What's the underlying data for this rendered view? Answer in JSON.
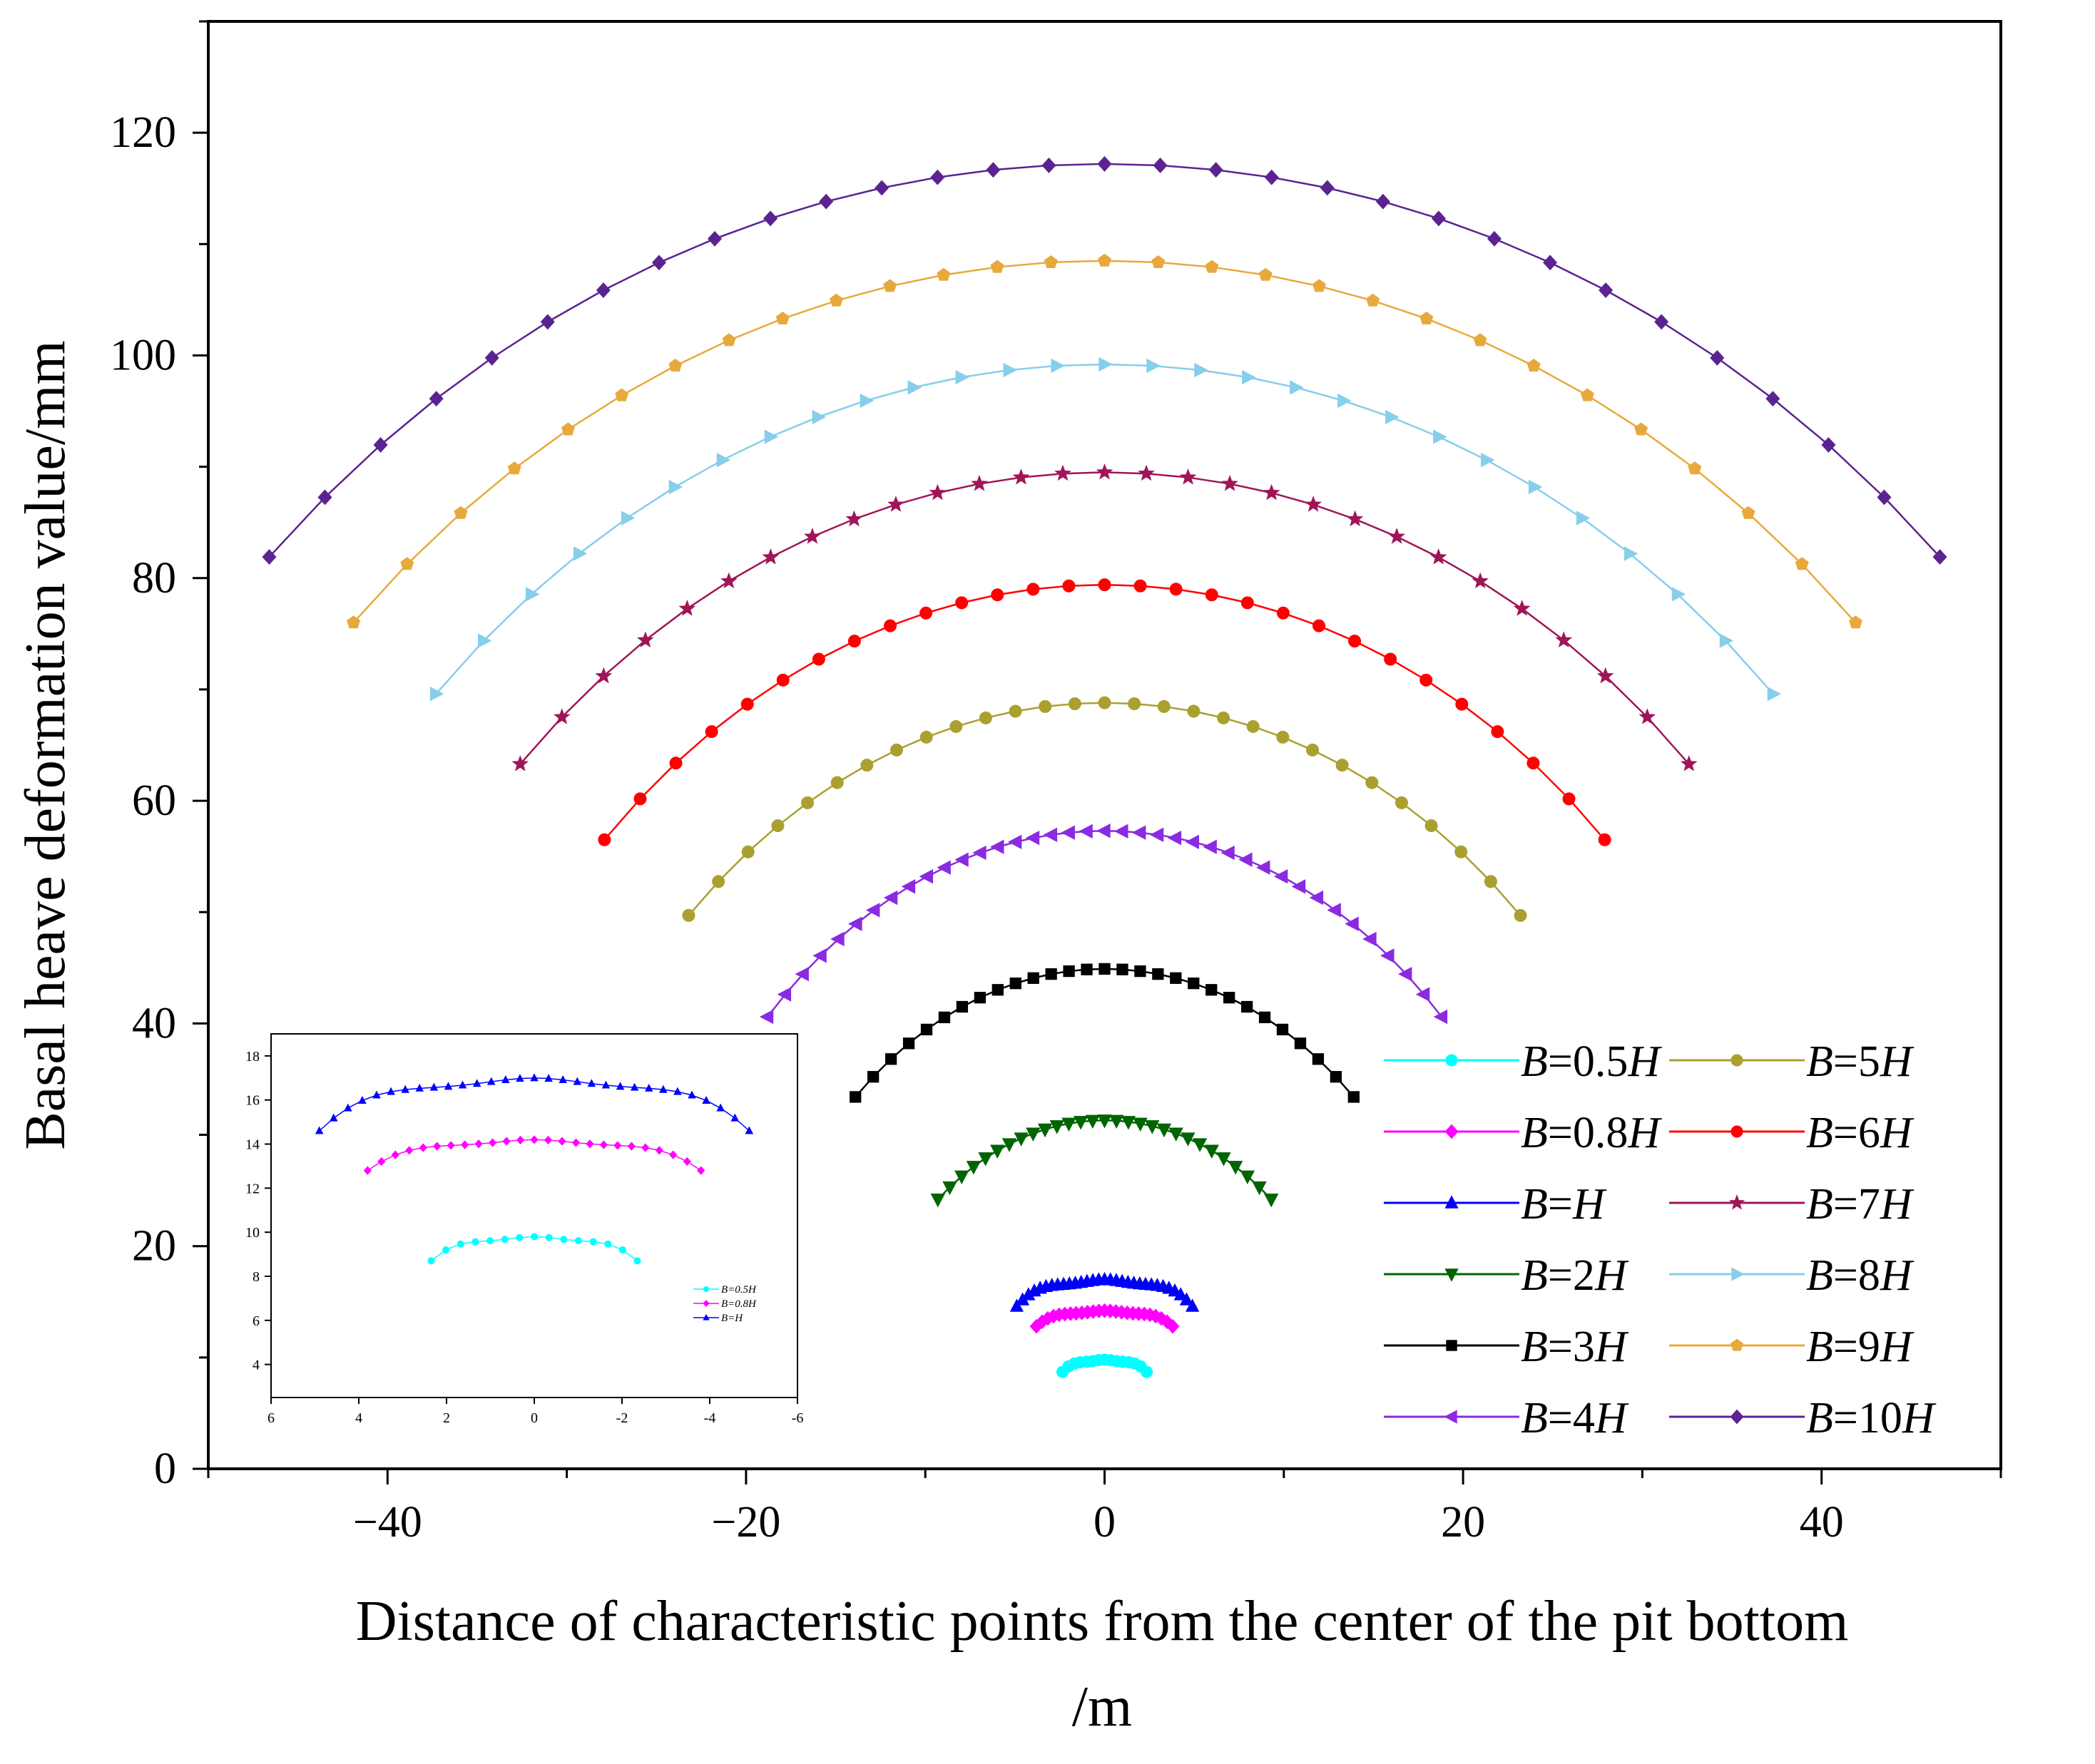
{
  "chart_data": {
    "type": "line",
    "title": "",
    "xlabel_line1": "Distance of  characteristic points from the center of the pit bottom",
    "xlabel_line2": "/m",
    "ylabel": "Basal heave deformation value/mm",
    "xlim": [
      -50,
      50
    ],
    "ylim": [
      0,
      130
    ],
    "xticks": [
      -40,
      -20,
      0,
      20,
      40
    ],
    "xtick_labels": [
      "−40",
      "−20",
      "0",
      "20",
      "40"
    ],
    "yticks": [
      0,
      20,
      40,
      60,
      80,
      100,
      120
    ],
    "ytick_labels": [
      "0",
      "20",
      "40",
      "60",
      "80",
      "100",
      "120"
    ],
    "legend_position": "bottom-right",
    "series": [
      {
        "name": "B=0.5H",
        "prefix": "B",
        "suffix": "=0.5",
        "italic": "H",
        "color": "#00FFFF",
        "marker": "circle",
        "half_width": 2.35,
        "peak": 9.8,
        "edge": 8.7,
        "points": 15,
        "shape": "flat"
      },
      {
        "name": "B=0.8H",
        "prefix": "B",
        "suffix": "=0.8",
        "italic": "H",
        "color": "#FF00FF",
        "marker": "diamond",
        "half_width": 3.8,
        "peak": 14.2,
        "edge": 12.8,
        "points": 25,
        "shape": "flat"
      },
      {
        "name": "B=H",
        "prefix": "B",
        "suffix": "=",
        "italic": "H",
        "color": "#0000FF",
        "marker": "triangle-up",
        "half_width": 4.9,
        "peak": 17.0,
        "edge": 14.6,
        "points": 31,
        "shape": "flat"
      },
      {
        "name": "B=2H",
        "prefix": "B",
        "suffix": "=2",
        "italic": "H",
        "color": "#006400",
        "marker": "triangle-down",
        "half_width": 9.3,
        "peak": 31.3,
        "edge": 24.2,
        "points": 29,
        "shape": "arc"
      },
      {
        "name": "B=3H",
        "prefix": "B",
        "suffix": "=3",
        "italic": "H",
        "color": "#000000",
        "marker": "square",
        "half_width": 13.9,
        "peak": 44.9,
        "edge": 33.4,
        "points": 29,
        "shape": "arc"
      },
      {
        "name": "B=4H",
        "prefix": "B",
        "suffix": "=4",
        "italic": "H",
        "color": "#8A2BE2",
        "marker": "triangle-left",
        "half_width": 18.8,
        "peak": 57.3,
        "edge": 40.6,
        "points": 39,
        "shape": "arc"
      },
      {
        "name": "B=5H",
        "prefix": "B",
        "suffix": "=5",
        "italic": "H",
        "color": "#AAA030",
        "marker": "circle",
        "half_width": 23.2,
        "peak": 68.8,
        "edge": 49.7,
        "points": 29,
        "shape": "arc"
      },
      {
        "name": "B=6H",
        "prefix": "B",
        "suffix": "=6",
        "italic": "H",
        "color": "#FF0000",
        "marker": "circle",
        "half_width": 27.9,
        "peak": 79.4,
        "edge": 56.5,
        "points": 29,
        "shape": "arc"
      },
      {
        "name": "B=7H",
        "prefix": "B",
        "suffix": "=7",
        "italic": "H",
        "color": "#A01558",
        "marker": "star",
        "half_width": 32.6,
        "peak": 89.5,
        "edge": 63.3,
        "points": 29,
        "shape": "arc"
      },
      {
        "name": "B=8H",
        "prefix": "B",
        "suffix": "=8",
        "italic": "H",
        "color": "#87CEEB",
        "marker": "triangle-right",
        "half_width": 37.3,
        "peak": 99.2,
        "edge": 69.6,
        "points": 29,
        "shape": "arc"
      },
      {
        "name": "B=9H",
        "prefix": "B",
        "suffix": "=9",
        "italic": "H",
        "color": "#E8A93C",
        "marker": "pentagon",
        "half_width": 41.9,
        "peak": 108.5,
        "edge": 76.0,
        "points": 29,
        "shape": "arc"
      },
      {
        "name": "B=10H",
        "prefix": "B",
        "suffix": "=10",
        "italic": "H",
        "color": "#5B2392",
        "marker": "diamond",
        "half_width": 46.6,
        "peak": 117.2,
        "edge": 81.9,
        "points": 31,
        "shape": "arc"
      }
    ],
    "inset": {
      "type": "line",
      "x_reversed": true,
      "xlim": [
        6,
        -6
      ],
      "ylim": [
        2.5,
        19
      ],
      "xticks": [
        6,
        4,
        2,
        0,
        -2,
        -4,
        -6
      ],
      "xtick_labels": [
        "6",
        "4",
        "2",
        "0",
        "-2",
        "-4",
        "-6"
      ],
      "yticks": [
        4,
        6,
        8,
        10,
        12,
        14,
        16,
        18
      ],
      "ytick_labels": [
        "4",
        "6",
        "8",
        "10",
        "12",
        "14",
        "16",
        "18"
      ],
      "series_names": [
        "B=0.5H",
        "B=0.8H",
        "B=H"
      ],
      "legend": [
        {
          "name": "B=0.5H",
          "text": "B=0.5H"
        },
        {
          "name": "B=0.8H",
          "text": "B=0.8H"
        },
        {
          "name": "B=H",
          "text": "B=H"
        }
      ]
    }
  }
}
